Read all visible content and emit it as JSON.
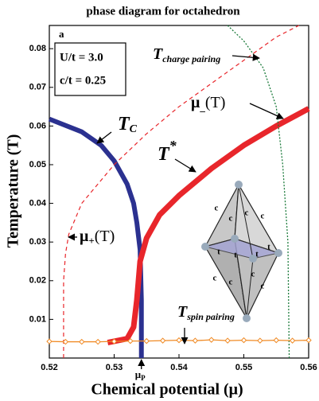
{
  "chart_data": {
    "type": "line",
    "title": "phase diagram for octahedron",
    "panel_label": "a",
    "parameters": [
      "U/t = 3.0",
      "c/t = 0.25"
    ],
    "xlabel": "Chemical potential (μ)",
    "ylabel": "Temperature (T)",
    "xlim": [
      0.52,
      0.56
    ],
    "ylim": [
      0,
      0.086
    ],
    "xticks": [
      0.52,
      0.53,
      0.54,
      0.55,
      0.56
    ],
    "yticks": [
      0.01,
      0.02,
      0.03,
      0.04,
      0.05,
      0.06,
      0.07,
      0.08
    ],
    "x_marker": {
      "label": "μ",
      "sub": "P",
      "x": 0.5342
    },
    "series": [
      {
        "label": "T",
        "sub": "C",
        "color": "#2b3190",
        "style": "solid",
        "width": 6,
        "x": [
          0.52,
          0.525,
          0.528,
          0.53,
          0.532,
          0.533,
          0.5335,
          0.534,
          0.5342,
          0.5342
        ],
        "values": [
          0.0618,
          0.0585,
          0.055,
          0.051,
          0.045,
          0.04,
          0.035,
          0.028,
          0.015,
          0.0
        ]
      },
      {
        "label": "T",
        "sup": "*",
        "color": "#e8262b",
        "style": "solid",
        "width": 7,
        "x": [
          0.529,
          0.532,
          0.533,
          0.5335,
          0.534,
          0.535,
          0.537,
          0.54,
          0.545,
          0.55,
          0.555,
          0.56
        ],
        "values": [
          0.004,
          0.005,
          0.008,
          0.015,
          0.025,
          0.031,
          0.037,
          0.042,
          0.049,
          0.055,
          0.06,
          0.0645
        ]
      },
      {
        "label": "μ",
        "sub": "_",
        "tail": "(T)",
        "color": "#e8262b",
        "style": "dashed",
        "width": 1.2,
        "x": [
          0.5222,
          0.5222,
          0.5225,
          0.523,
          0.525,
          0.53,
          0.535,
          0.54,
          0.545,
          0.55,
          0.555,
          0.5585
        ],
        "values": [
          0.0,
          0.02,
          0.027,
          0.032,
          0.04,
          0.05,
          0.058,
          0.065,
          0.071,
          0.077,
          0.083,
          0.086
        ]
      },
      {
        "label": "μ",
        "sub": "+",
        "tail": "(T)",
        "color": "#e8262b",
        "style": "none",
        "width": 0,
        "x": [],
        "values": []
      },
      {
        "label": "T",
        "sub": "charge pairing",
        "color": "#1a7a3a",
        "style": "dotted",
        "width": 1.3,
        "x": [
          0.5475,
          0.55,
          0.553,
          0.555,
          0.556,
          0.5568,
          0.557
        ],
        "values": [
          0.086,
          0.082,
          0.075,
          0.065,
          0.05,
          0.03,
          0.0
        ]
      },
      {
        "label": "T",
        "sub": "spin pairing",
        "color": "#f08a24",
        "style": "solid",
        "width": 1.3,
        "markers": true,
        "x": [
          0.52,
          0.5225,
          0.525,
          0.5275,
          0.53,
          0.5325,
          0.535,
          0.5375,
          0.54,
          0.5425,
          0.545,
          0.5475,
          0.55,
          0.5525,
          0.555,
          0.5575,
          0.56
        ],
        "values": [
          0.0043,
          0.0042,
          0.0042,
          0.0042,
          0.0043,
          0.0044,
          0.0044,
          0.0045,
          0.0046,
          0.0045,
          0.0047,
          0.0045,
          0.0046,
          0.0045,
          0.0046,
          0.0045,
          0.0046
        ]
      }
    ],
    "inset_labels": [
      "c",
      "c",
      "c",
      "c",
      "c",
      "c",
      "c",
      "c",
      "t",
      "t",
      "t",
      "t"
    ]
  }
}
